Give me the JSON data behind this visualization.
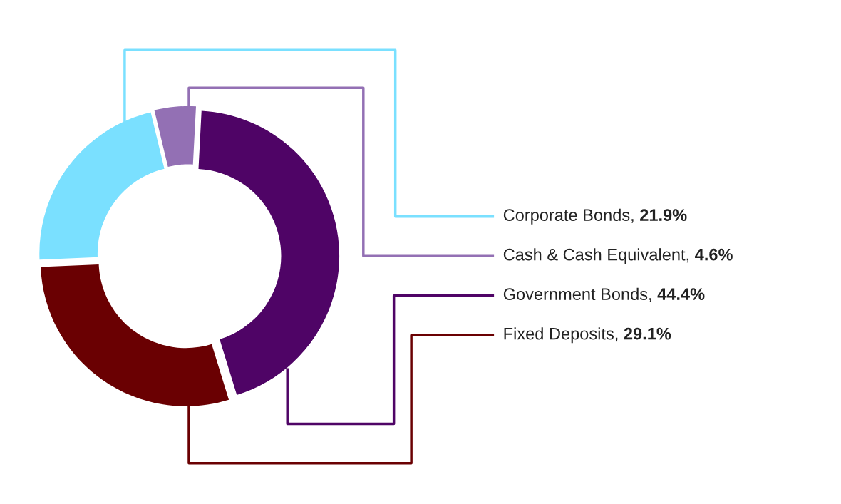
{
  "chart_data": {
    "type": "donut",
    "categories": [
      "Corporate Bonds",
      "Cash & Cash Equivalent",
      "Government Bonds",
      "Fixed Deposits"
    ],
    "values": [
      21.9,
      4.6,
      44.4,
      29.1
    ],
    "colors": [
      "#7ae0ff",
      "#9370b4",
      "#4f0466",
      "#6a0002"
    ],
    "value_labels": [
      "21.9%",
      "4.6%",
      "44.4%",
      "29.1%"
    ],
    "annotations": [
      ",",
      ",",
      ",",
      ","
    ],
    "legend": false
  }
}
